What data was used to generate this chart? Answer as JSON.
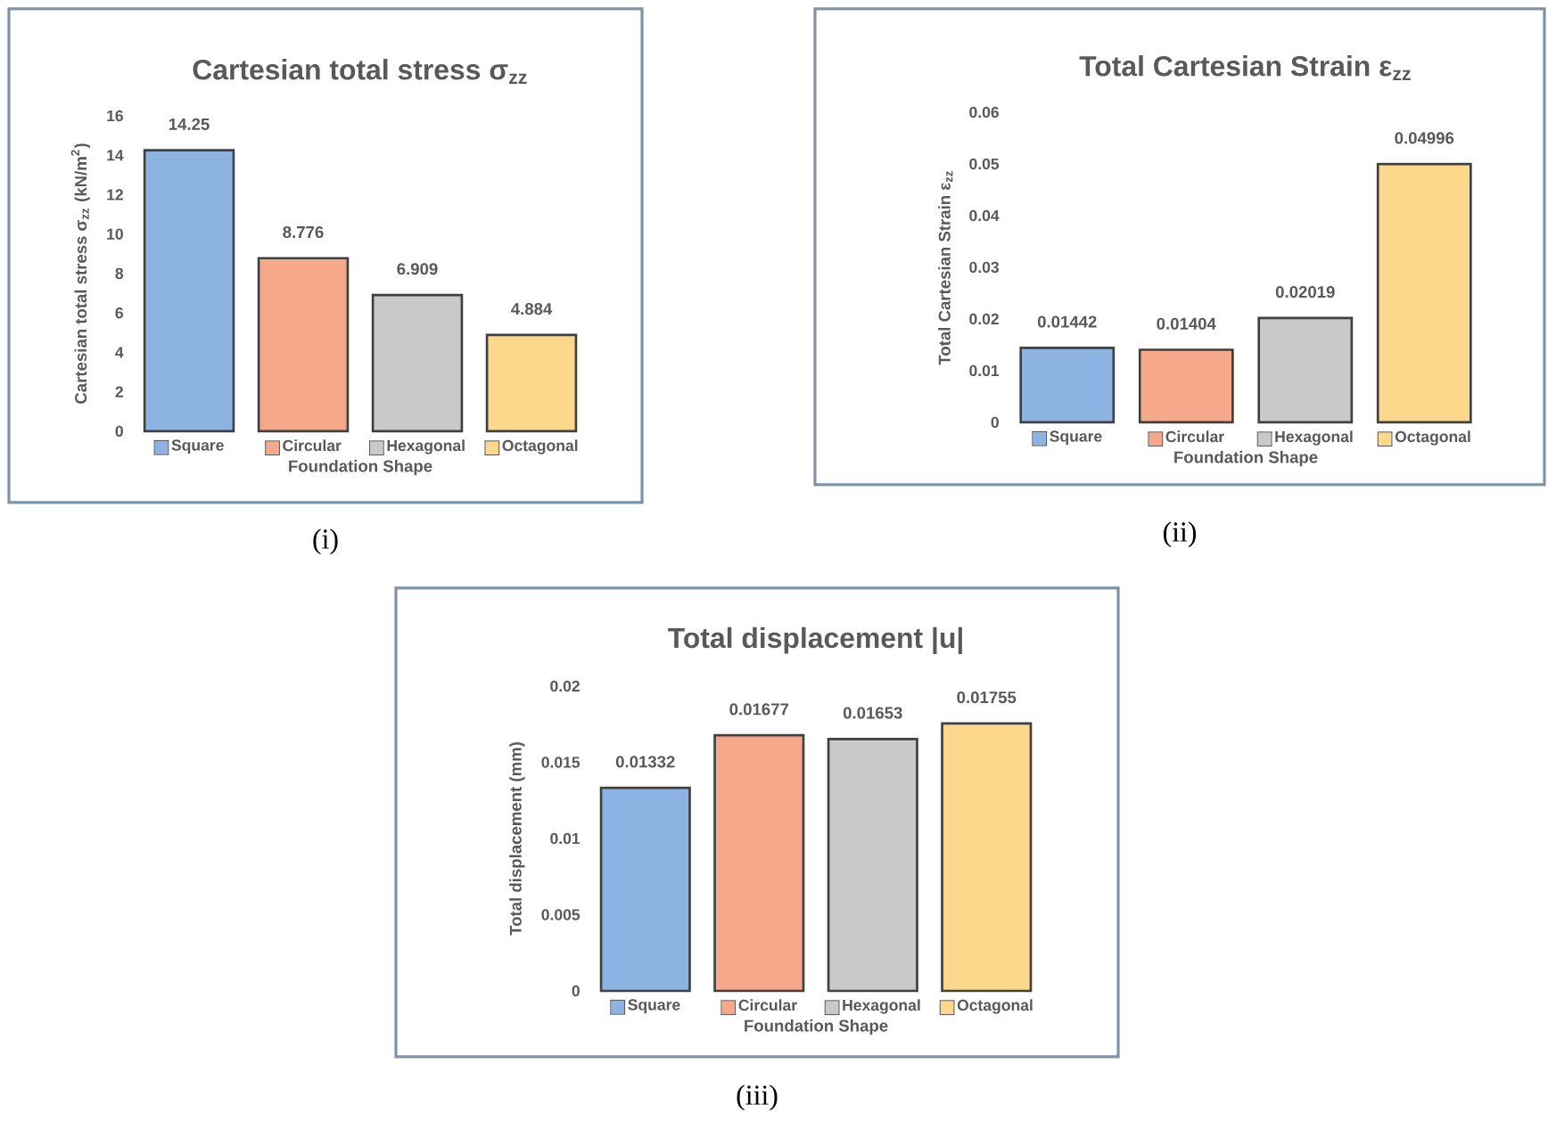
{
  "chart_data": [
    {
      "type": "bar",
      "title": "Cartesian total stress σ$_{zz}$",
      "xlabel": "Foundation Shape",
      "ylabel": "Cartesian total stress σ$_{zz}$ (kN/m$^{2}$)",
      "categories": [
        "Square",
        "Circular",
        "Hexagonal",
        "Octagonal"
      ],
      "values": [
        14.25,
        8.776,
        6.909,
        4.884
      ],
      "colors": [
        "#8db3e2",
        "#f6a88a",
        "#c9c9c9",
        "#fcd88c"
      ],
      "ylim": [
        0,
        16
      ],
      "yticks": [
        0,
        2,
        4,
        6,
        8,
        10,
        12,
        14,
        16
      ],
      "data_labels": true,
      "annotations": [
        "(i)"
      ]
    },
    {
      "type": "bar",
      "title": "Total Cartesian Strain ε$_{zz}$",
      "xlabel": "Foundation Shape",
      "ylabel": "Total Cartesian Strain ε$_{zz}$",
      "categories": [
        "Square",
        "Circular",
        "Hexagonal",
        "Octagonal"
      ],
      "values": [
        0.01442,
        0.01404,
        0.02019,
        0.04996
      ],
      "colors": [
        "#8db3e2",
        "#f6a88a",
        "#c9c9c9",
        "#fcd88c"
      ],
      "ylim": [
        0,
        0.06
      ],
      "yticks": [
        0,
        0.01,
        0.02,
        0.03,
        0.04,
        0.05,
        0.06
      ],
      "data_labels": true,
      "annotations": [
        "(ii)"
      ]
    },
    {
      "type": "bar",
      "title": "Total displacement |u|",
      "xlabel": "Foundation Shape",
      "ylabel": "Total displacement (mm)",
      "categories": [
        "Square",
        "Circular",
        "Hexagonal",
        "Octagonal"
      ],
      "values": [
        0.01332,
        0.01677,
        0.01653,
        0.01755
      ],
      "colors": [
        "#8db3e2",
        "#f6a88a",
        "#c9c9c9",
        "#fcd88c"
      ],
      "ylim": [
        0,
        0.02
      ],
      "yticks": [
        0,
        0.005,
        0.01,
        0.015,
        0.02
      ],
      "data_labels": true,
      "annotations": [
        "(iii)"
      ]
    }
  ]
}
